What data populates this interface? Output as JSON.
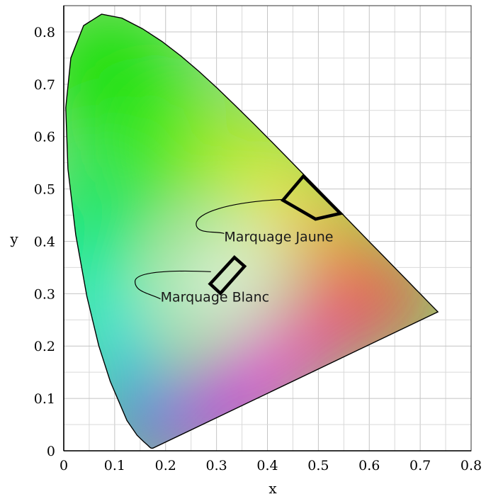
{
  "chart_data": {
    "type": "chromaticity-diagram",
    "title": "",
    "xlabel": "x",
    "ylabel": "y",
    "xlim": [
      0,
      0.8
    ],
    "ylim": [
      0,
      0.85
    ],
    "grid": true,
    "x_ticks": [
      "0",
      "0.1",
      "0.2",
      "0.3",
      "0.4",
      "0.5",
      "0.6",
      "0.7",
      "0.8"
    ],
    "y_ticks": [
      "0",
      "0.1",
      "0.2",
      "0.3",
      "0.4",
      "0.5",
      "0.6",
      "0.7",
      "0.8"
    ],
    "x_tick_values": [
      0,
      0.1,
      0.2,
      0.3,
      0.4,
      0.5,
      0.6,
      0.7,
      0.8
    ],
    "y_tick_values": [
      0,
      0.1,
      0.2,
      0.3,
      0.4,
      0.5,
      0.6,
      0.7,
      0.8
    ],
    "spectral_locus": [
      [
        0.175,
        0.005
      ],
      [
        0.174,
        0.005
      ],
      [
        0.173,
        0.005
      ],
      [
        0.1714,
        0.0051
      ],
      [
        0.1689,
        0.0069
      ],
      [
        0.1644,
        0.0109
      ],
      [
        0.1566,
        0.0177
      ],
      [
        0.144,
        0.0297
      ],
      [
        0.1241,
        0.0578
      ],
      [
        0.0913,
        0.1327
      ],
      [
        0.0687,
        0.2007
      ],
      [
        0.0454,
        0.295
      ],
      [
        0.0235,
        0.4127
      ],
      [
        0.0082,
        0.5384
      ],
      [
        0.0039,
        0.6548
      ],
      [
        0.0139,
        0.7502
      ],
      [
        0.0389,
        0.812
      ],
      [
        0.0743,
        0.8338
      ],
      [
        0.1142,
        0.8262
      ],
      [
        0.1547,
        0.8059
      ],
      [
        0.1929,
        0.7816
      ],
      [
        0.2296,
        0.7543
      ],
      [
        0.2658,
        0.7243
      ],
      [
        0.3016,
        0.6923
      ],
      [
        0.3373,
        0.6589
      ],
      [
        0.3731,
        0.6245
      ],
      [
        0.4087,
        0.5896
      ],
      [
        0.4441,
        0.5547
      ],
      [
        0.4788,
        0.5202
      ],
      [
        0.5125,
        0.4866
      ],
      [
        0.5448,
        0.4544
      ],
      [
        0.5752,
        0.4242
      ],
      [
        0.6029,
        0.3965
      ],
      [
        0.627,
        0.3725
      ],
      [
        0.6482,
        0.3514
      ],
      [
        0.6658,
        0.334
      ],
      [
        0.6801,
        0.3197
      ],
      [
        0.6915,
        0.3083
      ],
      [
        0.7006,
        0.2993
      ],
      [
        0.714,
        0.2859
      ],
      [
        0.7347,
        0.2653
      ]
    ],
    "regions": [
      {
        "name": "Marquage Jaune",
        "polygon": [
          [
            0.4305,
            0.4784
          ],
          [
            0.4706,
            0.5244
          ],
          [
            0.5435,
            0.4533
          ],
          [
            0.4944,
            0.4425
          ]
        ]
      },
      {
        "name": "Marquage Blanc",
        "polygon": [
          [
            0.2875,
            0.3187
          ],
          [
            0.3352,
            0.3693
          ],
          [
            0.3549,
            0.3523
          ],
          [
            0.3076,
            0.3006
          ]
        ]
      }
    ],
    "annotations": [
      {
        "text": "Marquage Jaune",
        "anchor": [
          0.315,
          0.4
        ],
        "leader": [
          [
            0.432,
            0.48
          ],
          [
            0.32,
            0.475
          ],
          [
            0.26,
            0.44
          ],
          [
            0.3,
            0.42
          ],
          [
            0.315,
            0.415
          ]
        ]
      },
      {
        "text": "Marquage Blanc",
        "anchor": [
          0.19,
          0.285
        ],
        "leader": [
          [
            0.289,
            0.342
          ],
          [
            0.22,
            0.345
          ],
          [
            0.14,
            0.33
          ],
          [
            0.17,
            0.3
          ],
          [
            0.19,
            0.29
          ]
        ]
      }
    ]
  }
}
